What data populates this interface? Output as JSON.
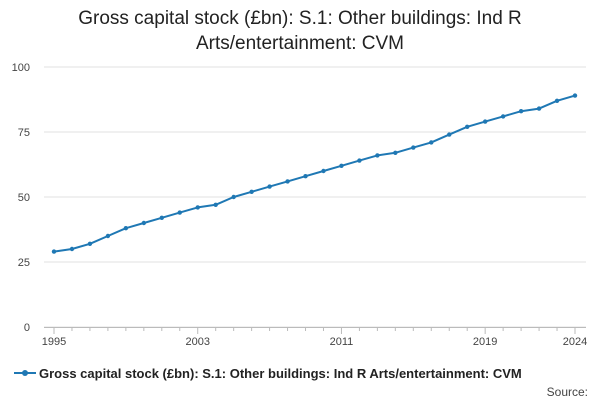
{
  "chart_data": {
    "type": "line",
    "title_lines": [
      "Gross capital stock (£bn): S.1: Other buildings: Ind R",
      "Arts/entertainment: CVM"
    ],
    "xlabel": "",
    "ylabel": "",
    "x": [
      1995,
      1996,
      1997,
      1998,
      1999,
      2000,
      2001,
      2002,
      2003,
      2004,
      2005,
      2006,
      2007,
      2008,
      2009,
      2010,
      2011,
      2012,
      2013,
      2014,
      2015,
      2016,
      2017,
      2018,
      2019,
      2020,
      2021,
      2022,
      2023,
      2024
    ],
    "x_ticks": [
      1995,
      2003,
      2011,
      2019,
      2024
    ],
    "xlim": [
      1995,
      2024
    ],
    "ylim": [
      0,
      100
    ],
    "y_ticks": [
      0,
      25,
      50,
      75,
      100
    ],
    "grid": "horizontal",
    "legend_position": "bottom",
    "series": [
      {
        "name": "Gross capital stock (£bn): S.1: Other buildings: Ind R Arts/entertainment: CVM",
        "color": "#1f78b4",
        "values": [
          29,
          30,
          32,
          35,
          38,
          40,
          42,
          44,
          46,
          47,
          50,
          52,
          54,
          56,
          58,
          60,
          62,
          64,
          66,
          67,
          69,
          71,
          74,
          77,
          79,
          81,
          83,
          84,
          87,
          89
        ]
      }
    ],
    "source_label": "Source:"
  }
}
